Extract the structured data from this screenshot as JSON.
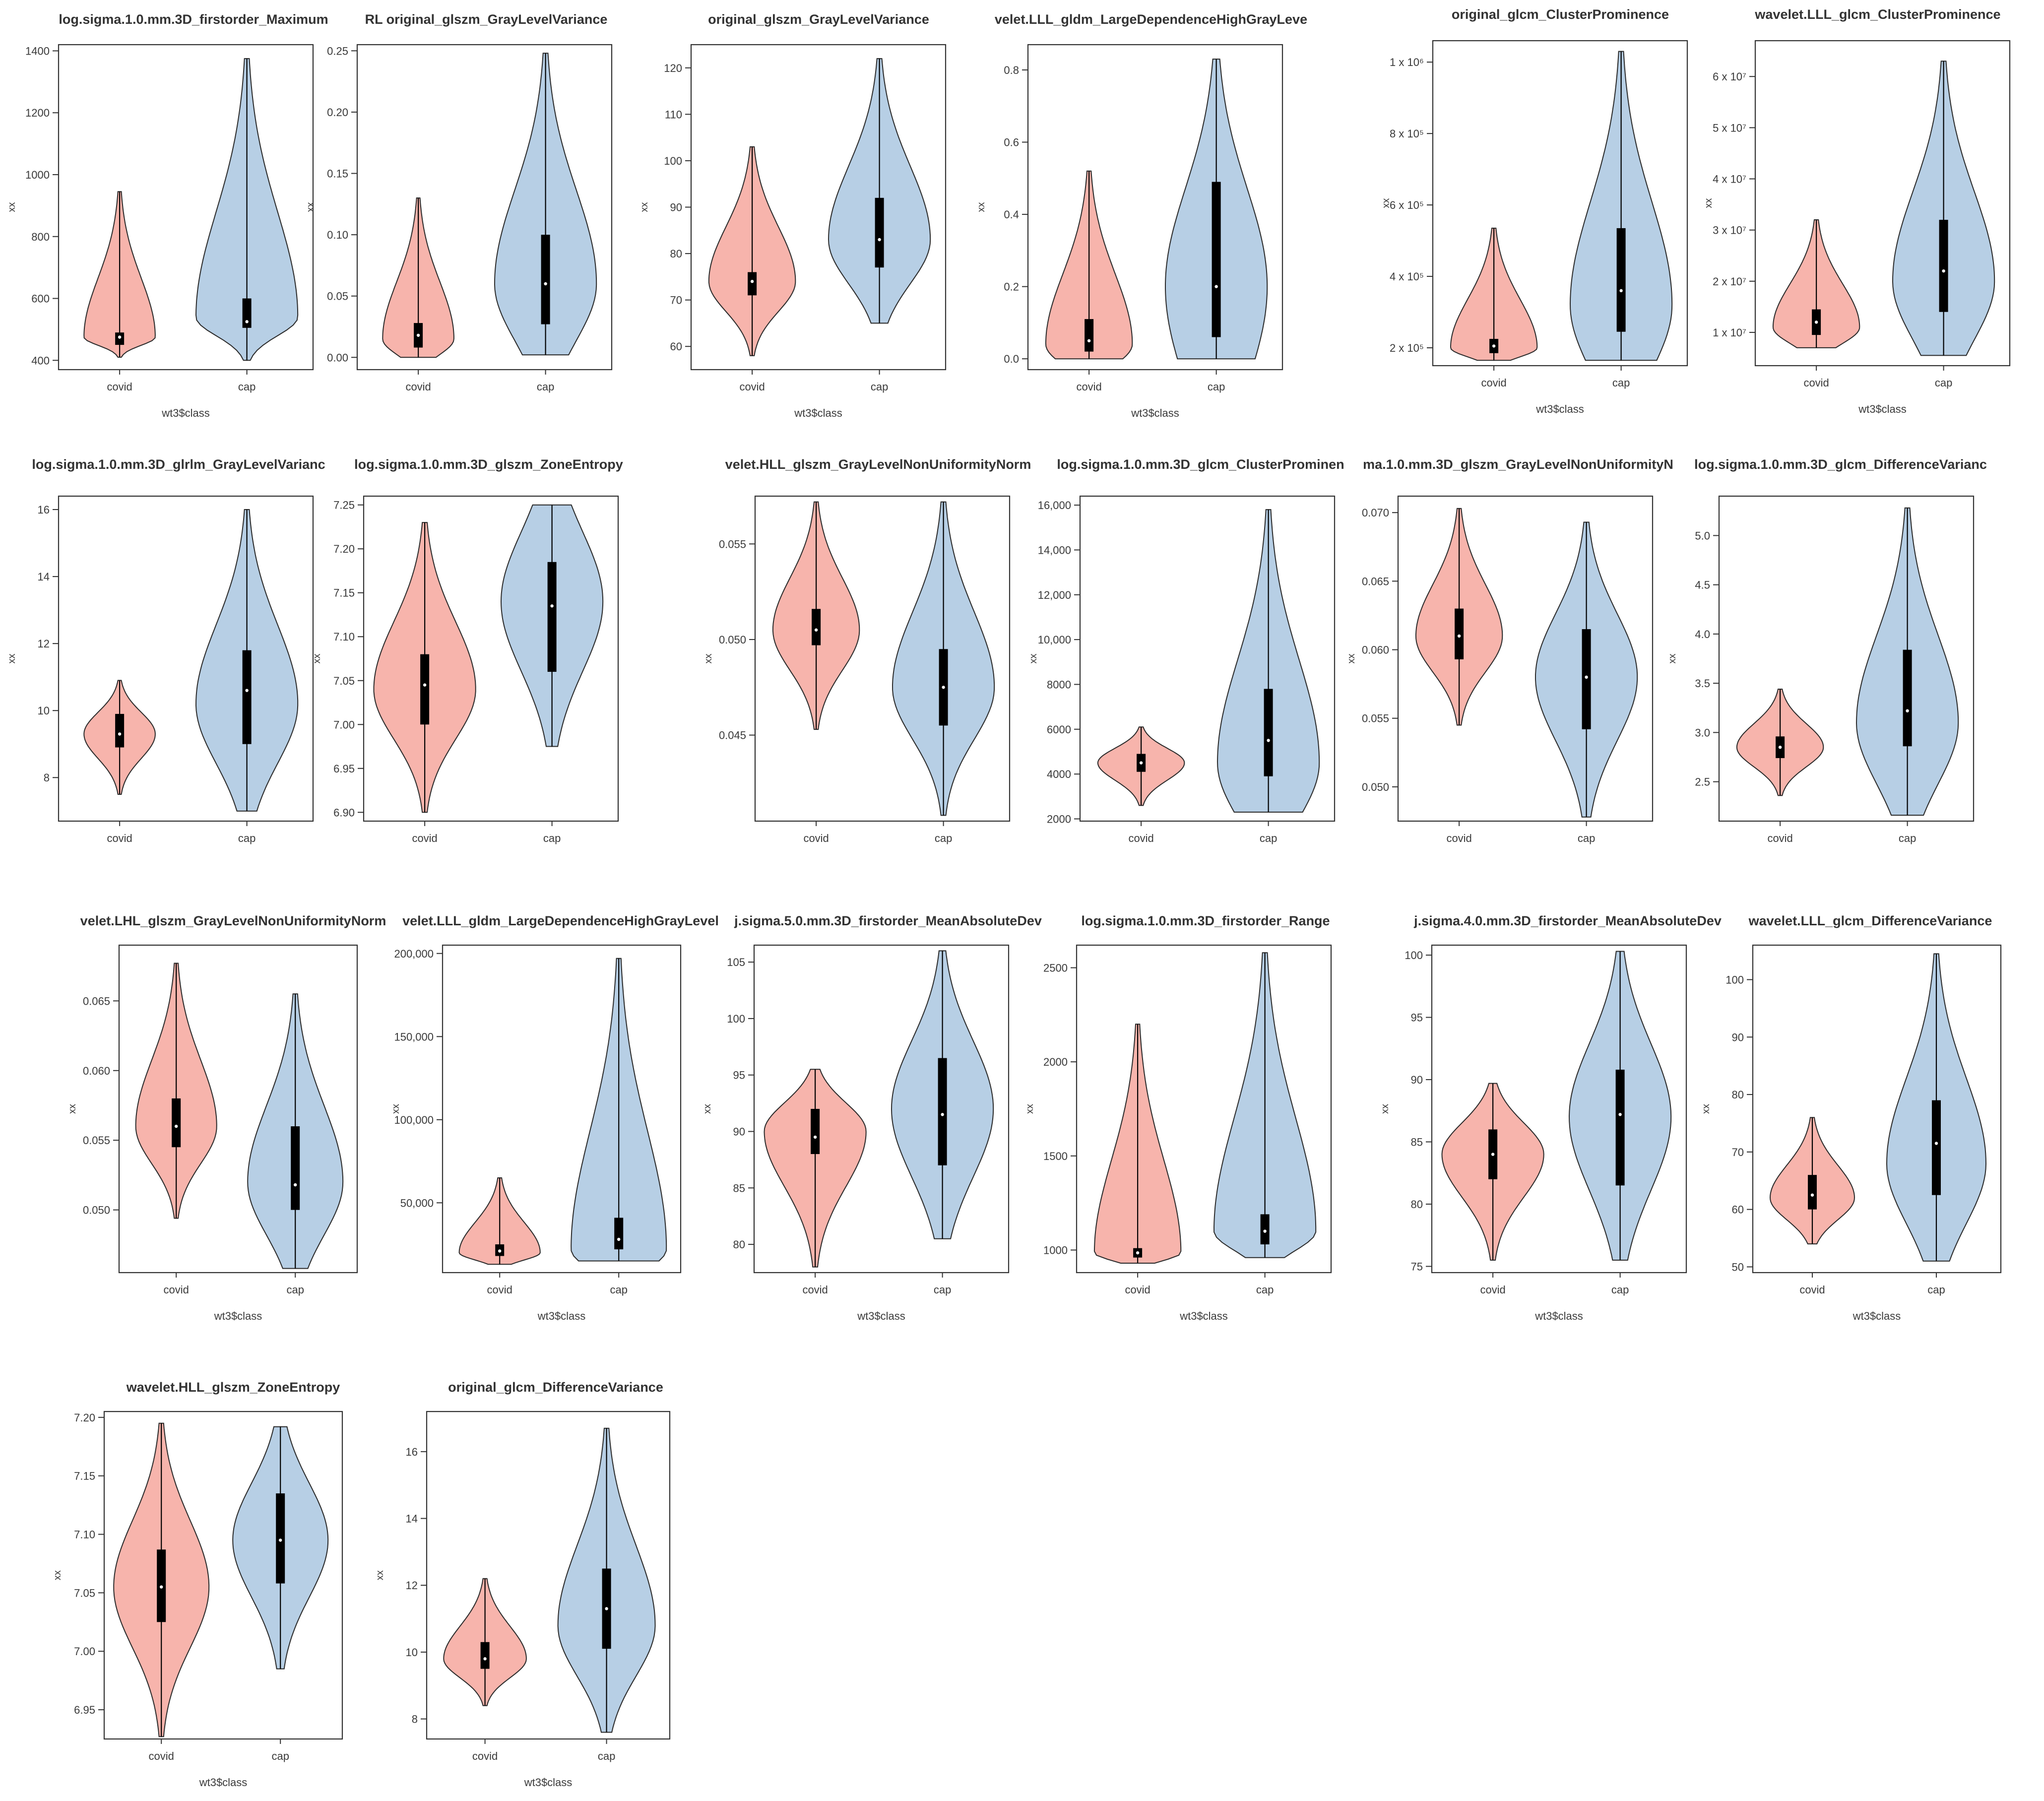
{
  "figure": {
    "description_colors": {
      "covid_fill": "#f7b4ac",
      "cap_fill": "#b7cfe5",
      "outline": "#2b2b2b",
      "box": "#000000"
    },
    "panel_count": 20
  },
  "chart_data": [
    {
      "type": "violin",
      "title": "log.sigma.1.0.mm.3D_firstorder_Maximum",
      "ylabel": "xx",
      "xlabel": "wt3$class",
      "categories": [
        "covid",
        "cap"
      ],
      "ylim": [
        370,
        1420
      ],
      "yticks": [
        400,
        600,
        800,
        1000,
        1200,
        1400
      ],
      "ytick_labels": [
        "400",
        "600",
        "800",
        "1000",
        "1200",
        "1400"
      ],
      "series": [
        {
          "name": "covid",
          "min": 410,
          "q1": 450,
          "median": 475,
          "q3": 490,
          "max": 945,
          "mode": 475,
          "spread": "narrow"
        },
        {
          "name": "cap",
          "min": 400,
          "q1": 505,
          "median": 525,
          "q3": 600,
          "max": 1375,
          "mode": 540,
          "spread": "wide"
        }
      ]
    },
    {
      "type": "violin",
      "title": "RL original_glszm_GrayLevelVariance",
      "ylabel": "xx",
      "xlabel": "",
      "categories": [
        "covid",
        "cap"
      ],
      "ylim": [
        -0.01,
        0.255
      ],
      "yticks": [
        0.0,
        0.05,
        0.1,
        0.15,
        0.2,
        0.25
      ],
      "ytick_labels": [
        "0.00",
        "0.05",
        "0.10",
        "0.15",
        "0.20",
        "0.25"
      ],
      "series": [
        {
          "name": "covid",
          "min": 0.0,
          "q1": 0.008,
          "median": 0.018,
          "q3": 0.028,
          "max": 0.13,
          "mode": 0.015,
          "spread": "narrow"
        },
        {
          "name": "cap",
          "min": 0.002,
          "q1": 0.027,
          "median": 0.06,
          "q3": 0.1,
          "max": 0.248,
          "mode": 0.06,
          "spread": "wide"
        }
      ]
    },
    {
      "type": "violin",
      "title": "original_glszm_GrayLevelVariance",
      "ylabel": "xx",
      "xlabel": "wt3$class",
      "categories": [
        "covid",
        "cap"
      ],
      "ylim": [
        55,
        125
      ],
      "yticks": [
        60,
        70,
        80,
        90,
        100,
        110,
        120
      ],
      "ytick_labels": [
        "60",
        "70",
        "80",
        "90",
        "100",
        "110",
        "120"
      ],
      "series": [
        {
          "name": "covid",
          "min": 58,
          "q1": 71,
          "median": 74,
          "q3": 76,
          "max": 103,
          "mode": 74,
          "spread": "mid"
        },
        {
          "name": "cap",
          "min": 65,
          "q1": 77,
          "median": 83,
          "q3": 92,
          "max": 122,
          "mode": 83,
          "spread": "wide"
        }
      ]
    },
    {
      "type": "violin",
      "title": "velet.LLL_gldm_LargeDependenceHighGrayLeve",
      "ylabel": "xx",
      "xlabel": "wt3$class",
      "categories": [
        "covid",
        "cap"
      ],
      "ylim": [
        -0.03,
        0.87
      ],
      "yticks": [
        0.0,
        0.2,
        0.4,
        0.6,
        0.8
      ],
      "ytick_labels": [
        "0.0",
        "0.2",
        "0.4",
        "0.6",
        "0.8"
      ],
      "series": [
        {
          "name": "covid",
          "min": 0.0,
          "q1": 0.02,
          "median": 0.05,
          "q3": 0.11,
          "max": 0.52,
          "mode": 0.04,
          "spread": "mid"
        },
        {
          "name": "cap",
          "min": 0.0,
          "q1": 0.06,
          "median": 0.2,
          "q3": 0.49,
          "max": 0.83,
          "mode": 0.2,
          "spread": "wide"
        }
      ]
    },
    {
      "type": "violin",
      "title": "original_glcm_ClusterProminence",
      "ylabel": "xx",
      "xlabel": "wt3$class",
      "categories": [
        "covid",
        "cap"
      ],
      "ylim": [
        150000,
        1060000
      ],
      "yticks": [
        200000,
        400000,
        600000,
        800000,
        1000000
      ],
      "ytick_labels": [
        "2 x 10⁵",
        "4 x 10⁵",
        "6 x 10⁵",
        "8 x 10⁵",
        "1 x 10⁶"
      ],
      "series": [
        {
          "name": "covid",
          "min": 165000,
          "q1": 185000,
          "median": 205000,
          "q3": 225000,
          "max": 535000,
          "mode": 200000,
          "spread": "mid"
        },
        {
          "name": "cap",
          "min": 165000,
          "q1": 245000,
          "median": 360000,
          "q3": 535000,
          "max": 1030000,
          "mode": 320000,
          "spread": "wide"
        }
      ]
    },
    {
      "type": "violin",
      "title": "wavelet.LLL_glcm_ClusterProminence",
      "ylabel": "xx",
      "xlabel": "wt3$class",
      "categories": [
        "covid",
        "cap"
      ],
      "ylim": [
        3500000,
        67000000
      ],
      "yticks": [
        10000000,
        20000000,
        30000000,
        40000000,
        50000000,
        60000000
      ],
      "ytick_labels": [
        "1 x 10⁷",
        "2 x 10⁷",
        "3 x 10⁷",
        "4 x 10⁷",
        "5 x 10⁷",
        "6 x 10⁷"
      ],
      "series": [
        {
          "name": "covid",
          "min": 7000000,
          "q1": 9500000,
          "median": 12000000,
          "q3": 14500000,
          "max": 32000000,
          "mode": 11000000,
          "spread": "mid"
        },
        {
          "name": "cap",
          "min": 5500000,
          "q1": 14000000,
          "median": 22000000,
          "q3": 32000000,
          "max": 63000000,
          "mode": 20000000,
          "spread": "wide"
        }
      ]
    },
    {
      "type": "violin",
      "title": "log.sigma.1.0.mm.3D_glrlm_GrayLevelVarianc",
      "ylabel": "xx",
      "xlabel": "",
      "categories": [
        "covid",
        "cap"
      ],
      "ylim": [
        6.7,
        16.4
      ],
      "yticks": [
        8,
        10,
        12,
        14,
        16
      ],
      "ytick_labels": [
        "8",
        "10",
        "12",
        "14",
        "16"
      ],
      "series": [
        {
          "name": "covid",
          "min": 7.5,
          "q1": 8.9,
          "median": 9.3,
          "q3": 9.9,
          "max": 10.9,
          "mode": 9.3,
          "spread": "narrow"
        },
        {
          "name": "cap",
          "min": 7.0,
          "q1": 9.0,
          "median": 10.6,
          "q3": 11.8,
          "max": 16.0,
          "mode": 10.2,
          "spread": "wide"
        }
      ]
    },
    {
      "type": "violin",
      "title": "log.sigma.1.0.mm.3D_glszm_ZoneEntropy",
      "ylabel": "xx",
      "xlabel": "",
      "categories": [
        "covid",
        "cap"
      ],
      "ylim": [
        6.89,
        7.26
      ],
      "yticks": [
        6.9,
        6.95,
        7.0,
        7.05,
        7.1,
        7.15,
        7.2,
        7.25
      ],
      "ytick_labels": [
        "6.90",
        "6.95",
        "7.00",
        "7.05",
        "7.10",
        "7.15",
        "7.20",
        "7.25"
      ],
      "series": [
        {
          "name": "covid",
          "min": 6.9,
          "q1": 7.0,
          "median": 7.045,
          "q3": 7.08,
          "max": 7.23,
          "mode": 7.04,
          "spread": "wide"
        },
        {
          "name": "cap",
          "min": 6.975,
          "q1": 7.06,
          "median": 7.135,
          "q3": 7.185,
          "max": 7.25,
          "mode": 7.14,
          "spread": "wide"
        }
      ]
    },
    {
      "type": "violin",
      "title": "velet.HLL_glszm_GrayLevelNonUniformityNorm",
      "ylabel": "xx",
      "xlabel": "",
      "categories": [
        "covid",
        "cap"
      ],
      "ylim": [
        0.0405,
        0.0575
      ],
      "yticks": [
        0.045,
        0.05,
        0.055
      ],
      "ytick_labels": [
        "0.045",
        "0.050",
        "0.055"
      ],
      "series": [
        {
          "name": "covid",
          "min": 0.0453,
          "q1": 0.0497,
          "median": 0.0505,
          "q3": 0.0516,
          "max": 0.0572,
          "mode": 0.0505,
          "spread": "mid"
        },
        {
          "name": "cap",
          "min": 0.0408,
          "q1": 0.0455,
          "median": 0.0475,
          "q3": 0.0495,
          "max": 0.0572,
          "mode": 0.0475,
          "spread": "wide"
        }
      ]
    },
    {
      "type": "violin",
      "title": "log.sigma.1.0.mm.3D_glcm_ClusterProminen",
      "ylabel": "xx",
      "xlabel": "",
      "categories": [
        "covid",
        "cap"
      ],
      "ylim": [
        1900,
        16400
      ],
      "yticks": [
        2000,
        4000,
        6000,
        8000,
        10000,
        12000,
        14000,
        16000
      ],
      "ytick_labels": [
        "2000",
        "4000",
        "6000",
        "8000",
        "10,000",
        "12,000",
        "14,000",
        "16,000"
      ],
      "series": [
        {
          "name": "covid",
          "min": 2600,
          "q1": 4100,
          "median": 4500,
          "q3": 4900,
          "max": 6100,
          "mode": 4500,
          "spread": "mid"
        },
        {
          "name": "cap",
          "min": 2300,
          "q1": 3900,
          "median": 5500,
          "q3": 7800,
          "max": 15800,
          "mode": 4500,
          "spread": "wide"
        }
      ]
    },
    {
      "type": "violin",
      "title": "ma.1.0.mm.3D_glszm_GrayLevelNonUniformityN",
      "ylabel": "xx",
      "xlabel": "",
      "categories": [
        "covid",
        "cap"
      ],
      "ylim": [
        0.0475,
        0.0712
      ],
      "yticks": [
        0.05,
        0.055,
        0.06,
        0.065,
        0.07
      ],
      "ytick_labels": [
        "0.050",
        "0.055",
        "0.060",
        "0.065",
        "0.070"
      ],
      "series": [
        {
          "name": "covid",
          "min": 0.0545,
          "q1": 0.0593,
          "median": 0.061,
          "q3": 0.063,
          "max": 0.0703,
          "mode": 0.061,
          "spread": "mid"
        },
        {
          "name": "cap",
          "min": 0.0478,
          "q1": 0.0542,
          "median": 0.058,
          "q3": 0.0615,
          "max": 0.0693,
          "mode": 0.058,
          "spread": "wide"
        }
      ]
    },
    {
      "type": "violin",
      "title": "log.sigma.1.0.mm.3D_glcm_DifferenceVarianc",
      "ylabel": "xx",
      "xlabel": "",
      "categories": [
        "covid",
        "cap"
      ],
      "ylim": [
        2.1,
        5.4
      ],
      "yticks": [
        2.5,
        3.0,
        3.5,
        4.0,
        4.5,
        5.0
      ],
      "ytick_labels": [
        "2.5",
        "3.0",
        "3.5",
        "4.0",
        "4.5",
        "5.0"
      ],
      "series": [
        {
          "name": "covid",
          "min": 2.36,
          "q1": 2.74,
          "median": 2.85,
          "q3": 2.96,
          "max": 3.44,
          "mode": 2.85,
          "spread": "mid"
        },
        {
          "name": "cap",
          "min": 2.16,
          "q1": 2.86,
          "median": 3.22,
          "q3": 3.84,
          "max": 5.28,
          "mode": 3.1,
          "spread": "wide"
        }
      ]
    },
    {
      "type": "violin",
      "title": "velet.LHL_glszm_GrayLevelNonUniformityNorm",
      "ylabel": "xx",
      "xlabel": "wt3$class",
      "categories": [
        "covid",
        "cap"
      ],
      "ylim": [
        0.0455,
        0.069
      ],
      "yticks": [
        0.05,
        0.055,
        0.06,
        0.065
      ],
      "ytick_labels": [
        "0.050",
        "0.055",
        "0.060",
        "0.065"
      ],
      "series": [
        {
          "name": "covid",
          "min": 0.0494,
          "q1": 0.0545,
          "median": 0.056,
          "q3": 0.058,
          "max": 0.0677,
          "mode": 0.056,
          "spread": "mid"
        },
        {
          "name": "cap",
          "min": 0.0458,
          "q1": 0.05,
          "median": 0.0518,
          "q3": 0.056,
          "max": 0.0655,
          "mode": 0.052,
          "spread": "wide"
        }
      ]
    },
    {
      "type": "violin",
      "title": "velet.LLL_gldm_LargeDependenceHighGrayLevel",
      "ylabel": "xx",
      "xlabel": "wt3$class",
      "categories": [
        "covid",
        "cap"
      ],
      "ylim": [
        8000,
        205000
      ],
      "yticks": [
        50000,
        100000,
        150000,
        200000
      ],
      "ytick_labels": [
        "50,000",
        "100,000",
        "150,000",
        "200,000"
      ],
      "series": [
        {
          "name": "covid",
          "min": 13000,
          "q1": 18000,
          "median": 21000,
          "q3": 25000,
          "max": 65000,
          "mode": 20000,
          "spread": "mid"
        },
        {
          "name": "cap",
          "min": 15000,
          "q1": 22000,
          "median": 28000,
          "q3": 41000,
          "max": 197000,
          "mode": 22000,
          "spread": "wide"
        }
      ]
    },
    {
      "type": "violin",
      "title": "j.sigma.5.0.mm.3D_firstorder_MeanAbsoluteDev",
      "ylabel": "xx",
      "xlabel": "wt3$class",
      "categories": [
        "covid",
        "cap"
      ],
      "ylim": [
        77.5,
        106.5
      ],
      "yticks": [
        80,
        85,
        90,
        95,
        100,
        105
      ],
      "ytick_labels": [
        "80",
        "85",
        "90",
        "95",
        "100",
        "105"
      ],
      "series": [
        {
          "name": "covid",
          "min": 78,
          "q1": 88,
          "median": 89.5,
          "q3": 92,
          "max": 95.5,
          "mode": 90,
          "spread": "wide"
        },
        {
          "name": "cap",
          "min": 80.5,
          "q1": 87,
          "median": 91.5,
          "q3": 96.5,
          "max": 106,
          "mode": 92,
          "spread": "wide"
        }
      ]
    },
    {
      "type": "violin",
      "title": "log.sigma.1.0.mm.3D_firstorder_Range",
      "ylabel": "xx",
      "xlabel": "wt3$class",
      "categories": [
        "covid",
        "cap"
      ],
      "ylim": [
        880,
        2620
      ],
      "yticks": [
        1000,
        1500,
        2000,
        2500
      ],
      "ytick_labels": [
        "1000",
        "1500",
        "2000",
        "2500"
      ],
      "series": [
        {
          "name": "covid",
          "min": 930,
          "q1": 960,
          "median": 985,
          "q3": 1010,
          "max": 2200,
          "mode": 985,
          "spread": "mid"
        },
        {
          "name": "cap",
          "min": 960,
          "q1": 1030,
          "median": 1100,
          "q3": 1190,
          "max": 2580,
          "mode": 1100,
          "spread": "wide"
        }
      ]
    },
    {
      "type": "violin",
      "title": "j.sigma.4.0.mm.3D_firstorder_MeanAbsoluteDev",
      "ylabel": "xx",
      "xlabel": "wt3$class",
      "categories": [
        "covid",
        "cap"
      ],
      "ylim": [
        74.5,
        100.8
      ],
      "yticks": [
        75,
        80,
        85,
        90,
        95,
        100
      ],
      "ytick_labels": [
        "75",
        "80",
        "85",
        "90",
        "95",
        "100"
      ],
      "series": [
        {
          "name": "covid",
          "min": 75.5,
          "q1": 82,
          "median": 84,
          "q3": 86,
          "max": 89.7,
          "mode": 84,
          "spread": "wide"
        },
        {
          "name": "cap",
          "min": 75.5,
          "q1": 81.5,
          "median": 87.2,
          "q3": 90.8,
          "max": 100.3,
          "mode": 87,
          "spread": "wide"
        }
      ]
    },
    {
      "type": "violin",
      "title": "wavelet.LLL_glcm_DifferenceVariance",
      "ylabel": "xx",
      "xlabel": "wt3$class",
      "categories": [
        "covid",
        "cap"
      ],
      "ylim": [
        49,
        106
      ],
      "yticks": [
        50,
        60,
        70,
        80,
        90,
        100
      ],
      "ytick_labels": [
        "50",
        "60",
        "70",
        "80",
        "90",
        "100"
      ],
      "series": [
        {
          "name": "covid",
          "min": 54,
          "q1": 60,
          "median": 62.5,
          "q3": 66,
          "max": 76,
          "mode": 62,
          "spread": "mid"
        },
        {
          "name": "cap",
          "min": 51,
          "q1": 62.5,
          "median": 71.5,
          "q3": 79,
          "max": 104.5,
          "mode": 68,
          "spread": "wide"
        }
      ]
    },
    {
      "type": "violin",
      "title": "wavelet.HLL_glszm_ZoneEntropy",
      "ylabel": "xx",
      "xlabel": "wt3$class",
      "categories": [
        "covid",
        "cap"
      ],
      "ylim": [
        6.925,
        7.205
      ],
      "yticks": [
        6.95,
        7.0,
        7.05,
        7.1,
        7.15,
        7.2
      ],
      "ytick_labels": [
        "6.95",
        "7.00",
        "7.05",
        "7.10",
        "7.15",
        "7.20"
      ],
      "series": [
        {
          "name": "covid",
          "min": 6.927,
          "q1": 7.025,
          "median": 7.055,
          "q3": 7.087,
          "max": 7.195,
          "mode": 7.055,
          "spread": "wide"
        },
        {
          "name": "cap",
          "min": 6.985,
          "q1": 7.058,
          "median": 7.095,
          "q3": 7.135,
          "max": 7.192,
          "mode": 7.095,
          "spread": "wide"
        }
      ]
    },
    {
      "type": "violin",
      "title": "original_glcm_DifferenceVariance",
      "ylabel": "xx",
      "xlabel": "wt3$class",
      "categories": [
        "covid",
        "cap"
      ],
      "ylim": [
        7.4,
        17.2
      ],
      "yticks": [
        8,
        10,
        12,
        14,
        16
      ],
      "ytick_labels": [
        "8",
        "10",
        "12",
        "14",
        "16"
      ],
      "series": [
        {
          "name": "covid",
          "min": 8.4,
          "q1": 9.5,
          "median": 9.8,
          "q3": 10.3,
          "max": 12.2,
          "mode": 9.8,
          "spread": "mid"
        },
        {
          "name": "cap",
          "min": 7.6,
          "q1": 10.1,
          "median": 11.3,
          "q3": 12.5,
          "max": 16.7,
          "mode": 10.8,
          "spread": "wide"
        }
      ]
    }
  ]
}
